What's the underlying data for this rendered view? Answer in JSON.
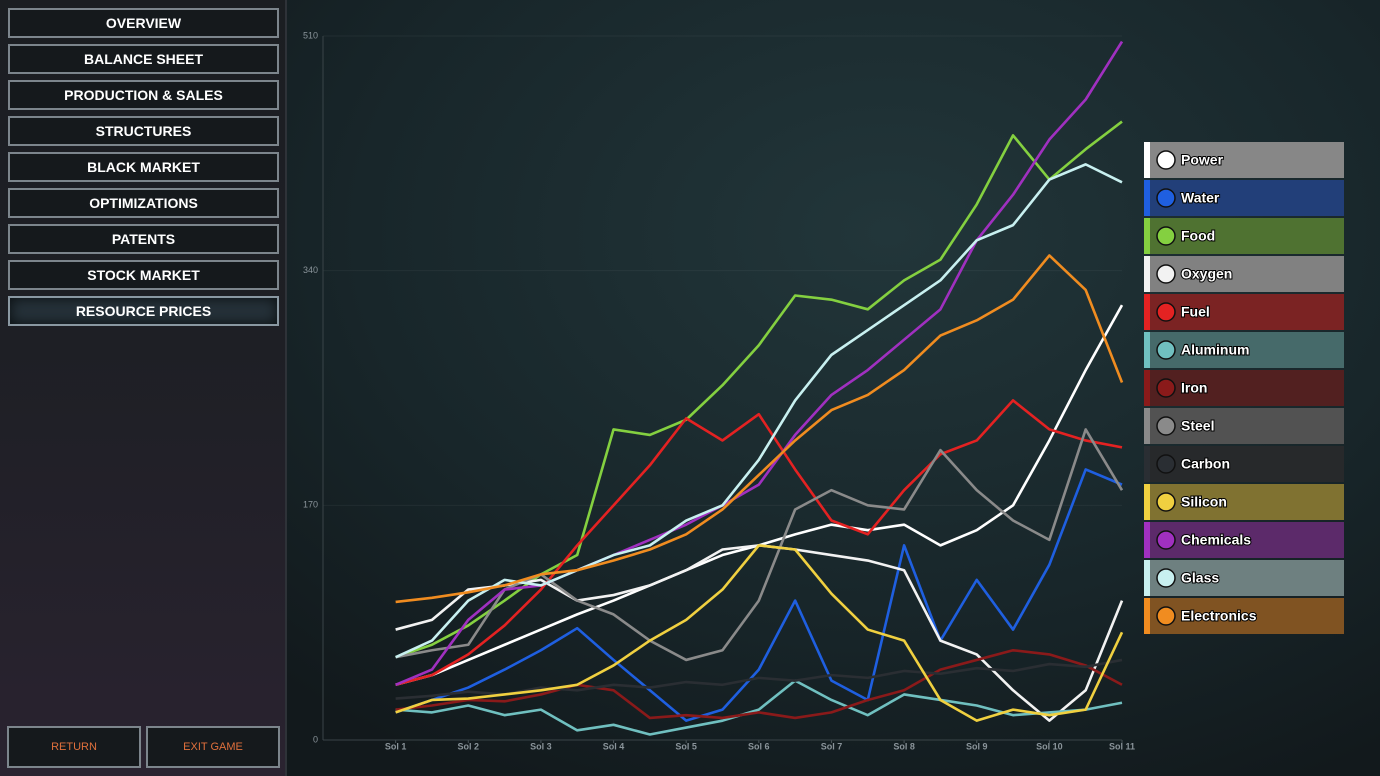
{
  "menu": {
    "items": [
      "OVERVIEW",
      "BALANCE SHEET",
      "PRODUCTION & SALES",
      "STRUCTURES",
      "BLACK MARKET",
      "OPTIMIZATIONS",
      "PATENTS",
      "STOCK MARKET",
      "RESOURCE PRICES"
    ],
    "active": 8
  },
  "buttons": [
    "RETURN",
    "EXIT GAME"
  ],
  "chart_data": {
    "type": "line",
    "x": [
      1,
      1.5,
      2,
      2.5,
      3,
      3.5,
      4,
      4.5,
      5,
      5.5,
      6,
      6.5,
      7,
      7.5,
      8,
      8.5,
      9,
      9.5,
      10,
      10.5,
      11
    ],
    "xlim": [
      0,
      11
    ],
    "xticks": [
      {
        "value": 1,
        "label": "Sol 1"
      },
      {
        "value": 2,
        "label": "Sol 2"
      },
      {
        "value": 3,
        "label": "Sol 3"
      },
      {
        "value": 4,
        "label": "Sol 4"
      },
      {
        "value": 5,
        "label": "Sol 5"
      },
      {
        "value": 6,
        "label": "Sol 6"
      },
      {
        "value": 7,
        "label": "Sol 7"
      },
      {
        "value": 8,
        "label": "Sol 8"
      },
      {
        "value": 9,
        "label": "Sol 9"
      },
      {
        "value": 10,
        "label": "Sol 10"
      },
      {
        "value": 11,
        "label": "Sol 11"
      }
    ],
    "ylim": [
      0,
      510
    ],
    "yticks": [
      0,
      170,
      340,
      510
    ],
    "legend": "right",
    "series": [
      {
        "name": "Power",
        "color": "#ffffff",
        "values": [
          40,
          47,
          58,
          69,
          80,
          91,
          101,
          112,
          123,
          134,
          141,
          149,
          156,
          152,
          156,
          141,
          152,
          170,
          217,
          268,
          315
        ]
      },
      {
        "name": "Water",
        "color": "#1f5fe0",
        "values": [
          20,
          29,
          38,
          51,
          65,
          81,
          58,
          36,
          14,
          22,
          51,
          101,
          43,
          29,
          141,
          72,
          116,
          80,
          127,
          196,
          185
        ]
      },
      {
        "name": "Food",
        "color": "#84d040",
        "values": [
          60,
          69,
          83,
          101,
          120,
          134,
          225,
          221,
          232,
          257,
          286,
          322,
          319,
          312,
          333,
          348,
          388,
          438,
          406,
          428,
          448
        ]
      },
      {
        "name": "Oxygen",
        "color": "#f2f2f2",
        "values": [
          80,
          87,
          109,
          112,
          116,
          101,
          105,
          112,
          123,
          138,
          141,
          138,
          134,
          130,
          123,
          72,
          62,
          36,
          14,
          36,
          101
        ]
      },
      {
        "name": "Fuel",
        "color": "#e42222",
        "values": [
          40,
          47,
          62,
          83,
          109,
          141,
          170,
          199,
          233,
          217,
          236,
          196,
          159,
          149,
          181,
          207,
          217,
          246,
          225,
          217,
          212
        ]
      },
      {
        "name": "Aluminum",
        "color": "#70c0c0",
        "values": [
          22,
          20,
          25,
          18,
          22,
          7,
          11,
          4,
          9,
          14,
          22,
          43,
          29,
          18,
          33,
          29,
          25,
          18,
          20,
          22,
          27
        ]
      },
      {
        "name": "Iron",
        "color": "#8a1a1a",
        "values": [
          22,
          25,
          29,
          28,
          33,
          40,
          36,
          16,
          18,
          16,
          20,
          16,
          20,
          29,
          36,
          51,
          58,
          65,
          62,
          54,
          40
        ]
      },
      {
        "name": "Steel",
        "color": "#8a8a8a",
        "values": [
          60,
          65,
          69,
          109,
          120,
          101,
          91,
          72,
          58,
          65,
          101,
          167,
          181,
          170,
          167,
          210,
          181,
          159,
          145,
          225,
          181
        ]
      },
      {
        "name": "Carbon",
        "color": "#2a2e33",
        "values": [
          30,
          32,
          35,
          33,
          38,
          36,
          40,
          38,
          42,
          40,
          45,
          43,
          47,
          45,
          50,
          48,
          52,
          50,
          55,
          53,
          58
        ]
      },
      {
        "name": "Silicon",
        "color": "#f0d040",
        "values": [
          20,
          29,
          30,
          33,
          36,
          40,
          54,
          72,
          87,
          109,
          141,
          138,
          106,
          80,
          72,
          29,
          14,
          22,
          18,
          22,
          78
        ]
      },
      {
        "name": "Chemicals",
        "color": "#a030c0",
        "values": [
          40,
          51,
          87,
          109,
          112,
          123,
          134,
          145,
          156,
          170,
          185,
          221,
          250,
          268,
          290,
          312,
          362,
          395,
          435,
          464,
          506
        ]
      },
      {
        "name": "Glass",
        "color": "#c8f0f0",
        "values": [
          60,
          72,
          101,
          116,
          112,
          123,
          134,
          141,
          159,
          170,
          203,
          246,
          279,
          297,
          315,
          333,
          362,
          373,
          406,
          417,
          404
        ]
      },
      {
        "name": "Electronics",
        "color": "#f08c20",
        "values": [
          100,
          103,
          107,
          112,
          120,
          123,
          130,
          138,
          149,
          167,
          192,
          217,
          239,
          250,
          268,
          293,
          304,
          319,
          351,
          326,
          259
        ]
      }
    ]
  }
}
